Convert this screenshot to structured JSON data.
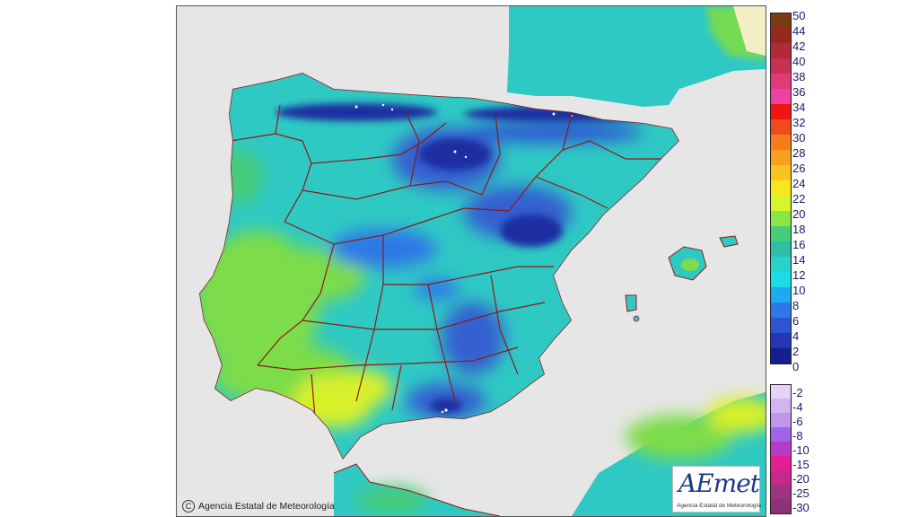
{
  "map": {
    "copyright": "Agencia Estatal de Meteorología",
    "logo": {
      "mark": "AEmet",
      "subtitle": "Agencia Estatal de Meteorología"
    },
    "colors": {
      "sea": "#e6e6e6",
      "land_base": "#2fc9c4",
      "warm": "#7ddc4a",
      "hot": "#d8f02a",
      "cold": "#3560d0",
      "very_cold": "#1d2fa0",
      "border": "#8b1a1a"
    }
  },
  "legend": {
    "positive": [
      {
        "label": "50",
        "color": "#7a3a12"
      },
      {
        "label": "44",
        "color": "#96281e"
      },
      {
        "label": "42",
        "color": "#b02a3a"
      },
      {
        "label": "40",
        "color": "#c83250"
      },
      {
        "label": "38",
        "color": "#e03a78"
      },
      {
        "label": "36",
        "color": "#f040a0"
      },
      {
        "label": "34",
        "color": "#f01414"
      },
      {
        "label": "32",
        "color": "#f04a1e"
      },
      {
        "label": "30",
        "color": "#f57d1e"
      },
      {
        "label": "28",
        "color": "#f8a01e"
      },
      {
        "label": "26",
        "color": "#fac31e"
      },
      {
        "label": "24",
        "color": "#fae61e"
      },
      {
        "label": "22",
        "color": "#d7f52d"
      },
      {
        "label": "20",
        "color": "#8ce646"
      },
      {
        "label": "18",
        "color": "#46cd78"
      },
      {
        "label": "16",
        "color": "#2dbeaa"
      },
      {
        "label": "14",
        "color": "#28d2c8"
      },
      {
        "label": "12",
        "color": "#1edce6"
      },
      {
        "label": "10",
        "color": "#1eaaf0"
      },
      {
        "label": "8",
        "color": "#2d78e6"
      },
      {
        "label": "6",
        "color": "#2d55d2"
      },
      {
        "label": "4",
        "color": "#2337b4"
      },
      {
        "label": "2",
        "color": "#141e8c"
      },
      {
        "label": "0",
        "color": ""
      }
    ],
    "negative": [
      {
        "label": "-2",
        "color": "#e6d2f5"
      },
      {
        "label": "-4",
        "color": "#d2b4f0"
      },
      {
        "label": "-6",
        "color": "#be96eb"
      },
      {
        "label": "-8",
        "color": "#a064e6"
      },
      {
        "label": "-10",
        "color": "#b43cc8"
      },
      {
        "label": "-15",
        "color": "#e61e96"
      },
      {
        "label": "-20",
        "color": "#c8288c"
      },
      {
        "label": "-25",
        "color": "#a03282"
      },
      {
        "label": "-30",
        "color": "#8c3278"
      }
    ]
  }
}
